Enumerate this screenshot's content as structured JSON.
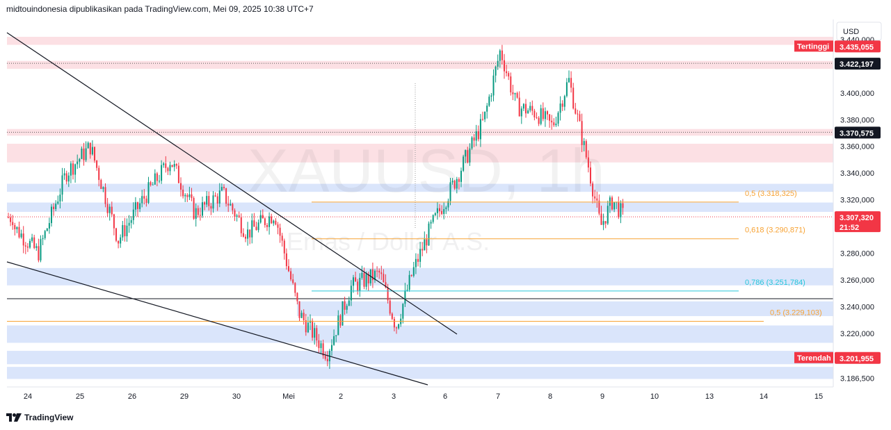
{
  "header": {
    "text": "midtouindonesia dipublikasikan pada TradingView.com, Mei 09, 2025 10:38 UTC+7"
  },
  "watermark": {
    "symbol": "XAUUSD, 1h",
    "description": "Emas / Dollar A.S."
  },
  "footer": {
    "brand": "TradingView"
  },
  "currency": "USD",
  "colors": {
    "up": "#089981",
    "down": "#f23645",
    "supply_zone": "#fcdde1",
    "demand_zone": "#d6e2fb",
    "fib": "#f7a233",
    "fib_786": "#26c6da"
  },
  "chart_data": {
    "type": "candlestick",
    "x_ticks": [
      "24",
      "25",
      "26",
      "29",
      "30",
      "Mei",
      "2",
      "3",
      "6",
      "7",
      "8",
      "9",
      "10",
      "13",
      "14",
      "15"
    ],
    "y_ticks": [
      "3.440,000",
      "3.400,000",
      "3.380,000",
      "3.360,000",
      "3.340,000",
      "3.320,000",
      "3.280,000",
      "3.260,000",
      "3.240,000",
      "3.220,000",
      "3.186,500"
    ],
    "ylim": [
      3180,
      3455
    ],
    "price_tags": [
      {
        "label": "Tertinggi",
        "value": "3.435,055",
        "price": 3435.055,
        "kind": "high"
      },
      {
        "label": "",
        "value": "3.422,197",
        "price": 3422.197,
        "kind": "line"
      },
      {
        "label": "",
        "value": "3.370,575",
        "price": 3370.575,
        "kind": "line"
      },
      {
        "label": "",
        "value": "3.307,320",
        "extra": "21:52",
        "price": 3307.32,
        "kind": "last"
      },
      {
        "label": "Terendah",
        "value": "3.201,955",
        "price": 3201.955,
        "kind": "low"
      }
    ],
    "fib_levels": [
      {
        "label": "0,5 (3.318,325)",
        "price": 3318.325
      },
      {
        "label": "0,618 (3.290,871)",
        "price": 3290.871
      },
      {
        "label": "0,786 (3.251,784)",
        "price": 3251.784
      },
      {
        "label": "0,5 (3.229,103)",
        "price": 3229.103
      }
    ],
    "zones": [
      {
        "type": "supply",
        "from": 3436,
        "to": 3442
      },
      {
        "type": "supply",
        "from": 3418,
        "to": 3424
      },
      {
        "type": "supply",
        "from": 3368,
        "to": 3373
      },
      {
        "type": "supply",
        "from": 3348,
        "to": 3362
      },
      {
        "type": "demand",
        "from": 3326,
        "to": 3332
      },
      {
        "type": "demand",
        "from": 3311,
        "to": 3318
      },
      {
        "type": "demand",
        "from": 3256,
        "to": 3269
      },
      {
        "type": "demand",
        "from": 3233,
        "to": 3244
      },
      {
        "type": "demand",
        "from": 3213,
        "to": 3226
      },
      {
        "type": "demand",
        "from": 3197,
        "to": 3207
      },
      {
        "type": "demand",
        "from": 3186,
        "to": 3195
      }
    ],
    "horizontal_lines": [
      {
        "price": 3246
      }
    ],
    "trendlines": [
      {
        "from": [
          "start",
          3445
        ],
        "to": [
          "3",
          3222
        ]
      },
      {
        "from": [
          "start",
          3274
        ],
        "to": [
          "6",
          3188
        ]
      }
    ],
    "path_points": [
      [
        "24",
        3300
      ],
      [
        "24",
        3280
      ],
      [
        "25",
        3340
      ],
      [
        "25",
        3360
      ],
      [
        "26",
        3290
      ],
      [
        "26",
        3320
      ],
      [
        "29",
        3350
      ],
      [
        "29",
        3310
      ],
      [
        "30",
        3325
      ],
      [
        "30",
        3295
      ],
      [
        "Mei",
        3310
      ],
      [
        "Mei",
        3235
      ],
      [
        "2",
        3205
      ],
      [
        "2",
        3255
      ],
      [
        "3",
        3265
      ],
      [
        "3",
        3225
      ],
      [
        "3",
        3265
      ],
      [
        "6",
        3300
      ],
      [
        "6",
        3335
      ],
      [
        "7",
        3380
      ],
      [
        "7",
        3432
      ],
      [
        "7",
        3390
      ],
      [
        "8",
        3385
      ],
      [
        "8",
        3375
      ],
      [
        "8",
        3410
      ],
      [
        "9",
        3345
      ],
      [
        "9",
        3300
      ],
      [
        "9",
        3320
      ],
      [
        "9",
        3307
      ]
    ]
  }
}
